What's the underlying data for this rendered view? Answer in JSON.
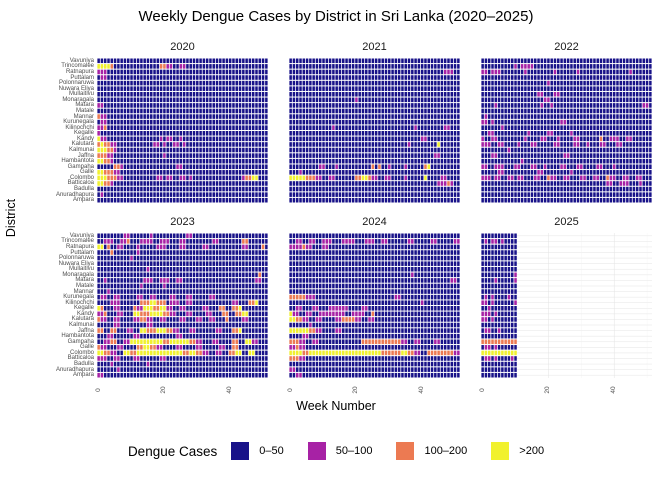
{
  "title": "Weekly Dengue Cases by District in Sri Lanka (2020–2025)",
  "x_axis": {
    "label": "Week Number",
    "ticks": [
      "0",
      "20",
      "40"
    ]
  },
  "y_axis": {
    "label": "District"
  },
  "legend": {
    "title": "Dengue Cases",
    "items": [
      {
        "label": "0–50",
        "color": "#181289"
      },
      {
        "label": "50–100",
        "color": "#a722a5"
      },
      {
        "label": "100–200",
        "color": "#ec7a52"
      },
      {
        "label": ">200",
        "color": "#f1f12e"
      }
    ]
  },
  "chart_data": {
    "type": "heatmap",
    "title": "Weekly Dengue Cases by District in Sri Lanka (2020–2025)",
    "xlabel": "Week Number",
    "ylabel": "District",
    "facets": [
      "2020",
      "2021",
      "2022",
      "2023",
      "2024",
      "2025"
    ],
    "weeks": {
      "2020": 52,
      "2021": 52,
      "2022": 52,
      "2023": 52,
      "2024": 52,
      "2025": 11
    },
    "districts": [
      "Vavuniya",
      "Trincomalee",
      "Ratnapura",
      "Puttalam",
      "Polonnaruwa",
      "Nuwara Eliya",
      "Mullaitivu",
      "Monaragala",
      "Matara",
      "Matale",
      "Mannar",
      "Kurunegala",
      "Kilinochchi",
      "Kegalle",
      "Kandy",
      "Kalutara",
      "Kalmunai",
      "Jaffna",
      "Hambantota",
      "Gampaha",
      "Galle",
      "Colombo",
      "Batticaloa",
      "Badulla",
      "Anuradhapura",
      "Ampara"
    ],
    "bins": [
      "0–50",
      "50–100",
      "100–200",
      ">200"
    ],
    "bin_colors": [
      "#181289",
      "#a722a5",
      "#ec7a52",
      "#f1f12e"
    ],
    "grid": {
      "2020": [
        "0000000000000000000000000000000000000000000000000000",
        "3333200000000000000221100110000000000000000000000000",
        "1110000000000000000000000000000000000000000000000000",
        "0110000000000000000000000000000000000000000000000000",
        "0000000000000000000000000000000000000000000000000000",
        "0000000000000000000000000000000000000000000000000000",
        "0000000000000000000000000000000000000000000000000000",
        "0000000000000000000000000000000000000000000000000000",
        "1100000000000000000000000000000000000000000000000000",
        "0000000000000000000000000000000000000000000000000000",
        "2110000000000000000000000000000000000000000000000000",
        "0110000000000000000000000000000000000000000000000000",
        "1120000000000000000000000000000000000000000000000000",
        "1000000000000000000000000000000000000000000000000000",
        "3110000000000000000101100100000000000000000000000000",
        "2322110000000000011010011010000000000000000000000000",
        "3332210000000000000000000000000000000000000000000000",
        "2221100000000000000010000000000000000000000000000000",
        "3322100000000000000000000000000000000000000000000000",
        "0000022100000000000000001100000000000000000000000000",
        "3322211000000000000000000000000000000000000000000000",
        "3332221100000000001101100110100000000000000012233000",
        "3322100000000000000000000000000000000000000000000000",
        "0000000000000000000000000000000000000000000000000000",
        "0100000000000000000000000000000000000000000000000000",
        "0000000000000000000000000000000000000000000000000000"
      ],
      "2021": [
        "0000000000000000000000000000000000000000000000000000",
        "0000000000000000000000000000000000000000000000000000",
        "0000000000000000000000000000000000000000000000011100",
        "0000000000000000000000000000000000000000000000000000",
        "0000000000000000000000000000000000000000000000000000",
        "0000000000000000000000000000000000000000000000000000",
        "0000000000000000000000000000000000000000000000000000",
        "0000000000000000000010000000000000000000000000000000",
        "0000000000000000000000000000000000000000000000000000",
        "0000000000000000000000000000000000000000000000000000",
        "0000000000000000000000000000000000000000000000000000",
        "0000000000000000000000000000000000000000000000000000",
        "0000000000000100000000000000000000000010000000011000",
        "0000000000000000000000000000000000000000000000000000",
        "0000000000000000000000000000000000000000110000000000",
        "0000000000000000000000000000000000001000000003000000",
        "0000000000000000000000000000000000000000000000000000",
        "0000000000000000000000000000000000000000000011000000",
        "0000000000000000000000000000000000000000000000000000",
        "0000000001100010000000000202001000010000023000000000",
        "0001000000000000000000000000000000000000000000000000",
        "3333322211001100000022332110011000010000030000110000",
        "0000000000000000000000000000000000000000000001112100",
        "0000000000000000000000000000000000000000000000000000",
        "0000000000000000000000000000000000000000000000000000",
        "0000000000000000000000000000000000000000000000000000"
      ],
      "2022": [
        "0000000000000000000000000000000000000000000000000000",
        "0000000000101111000000000000000000000000000000000000",
        "1101110000000100000000100000010000000000000001000000",
        "0000000000000000000000000000000000000000000000000000",
        "0000000000000000000010000000000000000000000000000000",
        "0000000000000000000000000000000000000000000000000000",
        "0000000000000000011000110000000000000000000000000000",
        "0000000000000000000110000000000000000000000000000000",
        "0000100000000000001001000000000000000000000000000110",
        "0000000000000000000000000000000000000000000000000000",
        "0100000000000000000000000000000000000000000000000000",
        "1101000000000000000000001100000000000000000000000000",
        "0000001000000000000000000000000000000000000000000000",
        "0011000000000010000011000001000000000000000000000000",
        "1001100000000100001100010000110000002001110011000000",
        "1110011000010001100000110000110010001100011000000000",
        "0000000010000000000000000000000000000000000000000000",
        "0001100000000000000000000110000000000000000000000000",
        "0000000000001000000000000000000000000000000000000000",
        "1100111000110001100100001100011000011000100000000000",
        "0000011000000000011000000001000000000000000000000000",
        "1110110011011000110021100110001100110021100110011000",
        "0000000000000000000000000000000000000011001110001000",
        "0000000000000000000000000000000000000000000000000000",
        "0000000000000000000000000000000000000000000000000000",
        "0000000000000000000000000000000000000000000000000000"
      ],
      "2023": [
        "0000000011000000100000000001100000000000000000000000",
        "0011100112000111100111000110000000011000000022000000",
        "3302001100001000001110000110000011000000000011000020",
        "0000200000001000000000000000000000000000000000000000",
        "0000000000100000000000000000000000000000000000000000",
        "0000000000000000000000000000000000000000000000000000",
        "0000000000000001000000000000000000000000000000000000",
        "0000000000000000000000000000000000000000000000000200",
        "0010000000000011100111001100000000000000000000001100",
        "0000000000000100000010000000000000000000000000000000",
        "0001000000000000000000000000000000000000000000000000",
        "0110011000001100110000110001100000110000000000000000",
        "0000111000000222332220111001100000000000011000223000",
        "3200011000021133322331100110000011000220022300000000",
        "1120001100033222333322110001100001100022002233000000",
        "2110011000011221100110000110001100110002000011000000",
        "0000011000000001100000000000000000000000000000000000",
        "2200220001100332223332211000110000001100022300000000",
        "0001100000011000000000001100000000000000000000000000",
        "0011220011333333333322333333221100011000022003311000",
        "2110001100002233221100001100001100000110022000000000",
        "3322110033223333333333333322332211001100223300330000",
        "1110011000011000000110000000000000000000000000000000",
        "0000100000000001000000000000000000000000000000000000",
        "0000001000000000000000000000000000000000000000000000",
        "1100000000000000000000000000000000000000000000000000"
      ],
      "2024": [
        "0000000000000000000000000000000000000000000000000000",
        "0011001100111000111100011100110000001100000110000011",
        "1111211000110000000000000000000000000000000000000000",
        "0000000000000000000000000000000000000000000000000000",
        "0000000000000000000000000000000000000000000000000000",
        "0000000000000000000000000000000000000000000000000000",
        "0000000000000000000000000000000000000000000000000000",
        "0000000000000000000000000000000000000100000000000000",
        "0000000000000000000000000000000000000000000000000110",
        "0000000000000000000000000000000000000000000000000000",
        "0000000000000000000000000000000000000000000000000000",
        "2222211100000000000000000000000011000000000000000000",
        "0000000000000000000000000000000000000000100000000000",
        "0011000110001111110000110000000000000000000000000000",
        "3110011001111111100111100200000000000000000000000000",
        "3322110011000011222211001100000000000000000000000000",
        "0000001000000000000000000000000000000000000000000000",
        "3333332211000011000000000000000000000000000000000000",
        "0000110000000000000000000000000000000000000000000000",
        "2221100110000000000000222222222222110011000011000000",
        "1121100000000000000000000000000000000000000000000000",
        "3333223333333333333333333333222222332211002222222211",
        "2221100000000000000000000000000000000000000000000000",
        "0000000000000000000000000000000000000000000000000000",
        "1100000000000000000000000000000000000000000000000000",
        "0011000000000000000000000000000000000000000000000000"
      ],
      "2025": [
        "00000000000",
        "01011010000",
        "00000000000",
        "00000000000",
        "00000000000",
        "00000000000",
        "00000000000",
        "00000000001",
        "00001000001",
        "00000000000",
        "00000000000",
        "01010000100",
        "11010000001",
        "00100000000",
        "11101000000",
        "11010000000",
        "00000000000",
        "01100100000",
        "00000000000",
        "22222222222",
        "01101000000",
        "33333333333",
        "01101000010",
        "00000000000",
        "00000000000",
        "00000000000"
      ]
    }
  }
}
